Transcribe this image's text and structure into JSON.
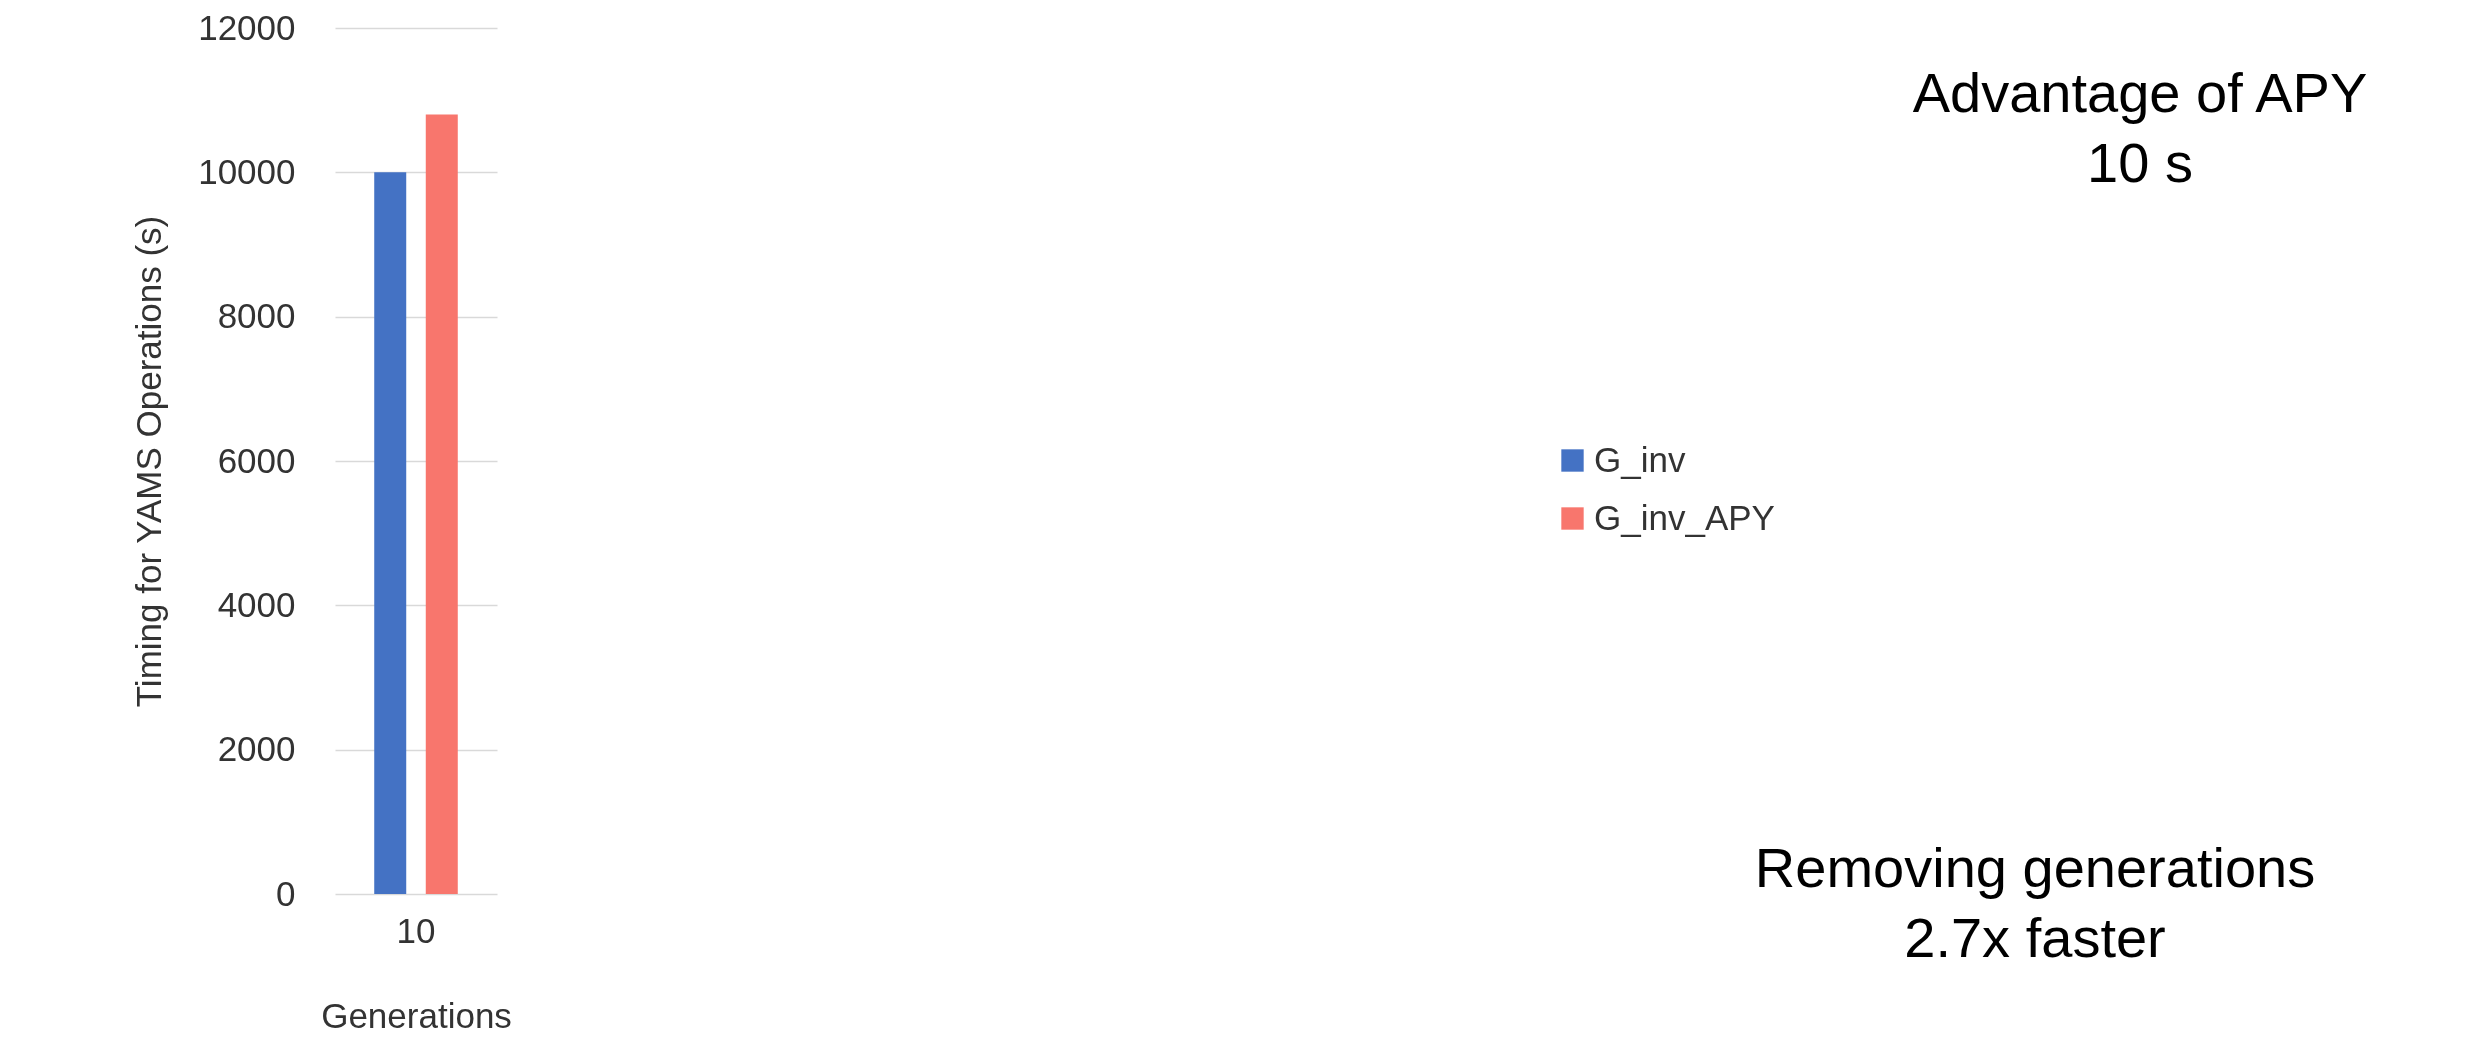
{
  "chart_data": {
    "type": "bar",
    "xlabel": "Generations",
    "ylabel": "Timing for YAMS Operations (s)",
    "categories": [
      "10"
    ],
    "series": [
      {
        "name": "G_inv",
        "color": "#4472c4",
        "values": [
          10000
        ]
      },
      {
        "name": "G_inv_APY",
        "color": "#f8766d",
        "values": [
          10800
        ]
      }
    ],
    "ylim": [
      0,
      12000
    ],
    "yticks": [
      0,
      2000,
      4000,
      6000,
      8000,
      10000,
      12000
    ],
    "grid": "y",
    "legend": "right",
    "annotations": [
      "Advantage of APY\n10 s",
      "Removing generations\n2.7x faster"
    ]
  }
}
